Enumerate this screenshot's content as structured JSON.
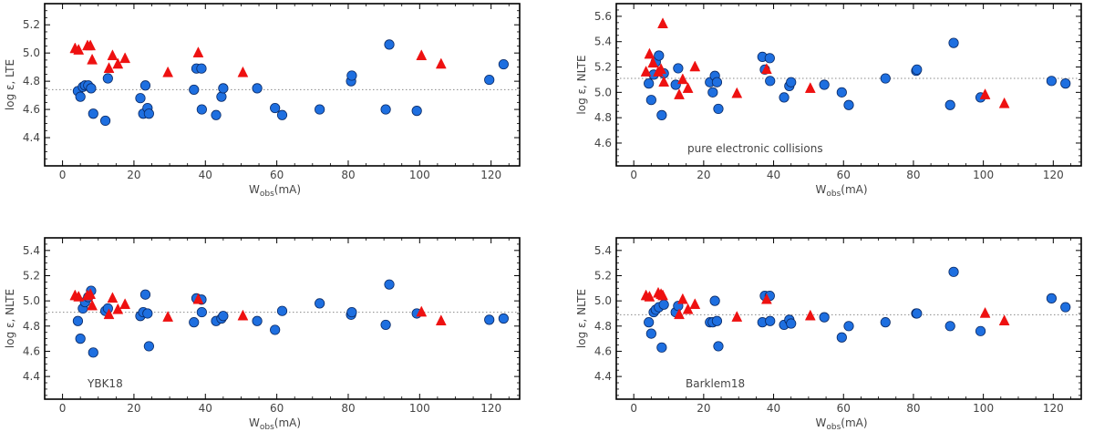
{
  "colors": {
    "circle": "#1e6fe0",
    "triangle": "#ee1111",
    "refline": "#8a8a8a",
    "frame": "#000000"
  },
  "chart_data": [
    {
      "type": "scatter",
      "ylabel": "log ε,  LTE",
      "xlabel": "W",
      "xlabel_sub": "obs",
      "xlabel_suffix": "(mA)",
      "annotation": "",
      "xlim": [
        -5,
        128
      ],
      "ylim": [
        4.2,
        5.35
      ],
      "xticks": [
        0,
        20,
        40,
        60,
        80,
        100,
        120
      ],
      "yticks": [
        4.4,
        4.6,
        4.8,
        5.0,
        5.2
      ],
      "refline": 4.74,
      "triangles": {
        "x": [
          3.5,
          4.5,
          7.0,
          7.8,
          8.3,
          13.0,
          14.0,
          15.5,
          17.5,
          29.5,
          38.0,
          50.5,
          100.5,
          106.0
        ],
        "y": [
          5.03,
          5.02,
          5.05,
          5.05,
          4.95,
          4.89,
          4.98,
          4.92,
          4.96,
          4.86,
          5.0,
          4.86,
          4.98,
          4.92
        ]
      },
      "circles": {
        "x": [
          4.3,
          5.0,
          5.7,
          6.3,
          7.2,
          8.0,
          8.6,
          12.0,
          12.7,
          21.8,
          22.6,
          23.2,
          23.8,
          24.2,
          36.8,
          37.5,
          38.9,
          39.0,
          43.0,
          44.5,
          45.0,
          54.5,
          59.5,
          61.5,
          72.0,
          80.8,
          81.0,
          90.5,
          91.5,
          99.2,
          119.5,
          123.5
        ],
        "y": [
          4.73,
          4.69,
          4.76,
          4.77,
          4.77,
          4.75,
          4.57,
          4.52,
          4.82,
          4.68,
          4.57,
          4.77,
          4.61,
          4.57,
          4.74,
          4.89,
          4.89,
          4.6,
          4.56,
          4.69,
          4.75,
          4.75,
          4.61,
          4.56,
          4.6,
          4.8,
          4.84,
          4.6,
          5.06,
          4.59,
          4.81,
          4.92
        ]
      }
    },
    {
      "type": "scatter",
      "ylabel": "log ε,  NLTE",
      "xlabel": "W",
      "xlabel_sub": "obs",
      "xlabel_suffix": "(mA)",
      "annotation": "pure electronic collisions",
      "xlim": [
        -5,
        128
      ],
      "ylim": [
        4.42,
        5.7
      ],
      "xticks": [
        0,
        20,
        40,
        60,
        80,
        100,
        120
      ],
      "yticks": [
        4.6,
        4.8,
        5.0,
        5.2,
        5.4,
        5.6
      ],
      "refline": 5.11,
      "triangles": {
        "x": [
          3.5,
          4.5,
          5.5,
          7.0,
          7.8,
          8.3,
          8.6,
          13.0,
          14.0,
          15.5,
          17.5,
          29.5,
          38.0,
          50.5,
          100.5,
          106.0
        ],
        "y": [
          5.16,
          5.3,
          5.23,
          5.16,
          5.18,
          5.54,
          5.08,
          4.98,
          5.1,
          5.03,
          5.2,
          4.99,
          5.18,
          5.03,
          4.98,
          4.91
        ]
      },
      "circles": {
        "x": [
          4.3,
          5.0,
          5.7,
          6.3,
          7.2,
          8.0,
          8.6,
          12.0,
          12.7,
          21.8,
          22.6,
          23.2,
          23.8,
          24.2,
          36.8,
          37.5,
          38.9,
          39.0,
          43.0,
          44.5,
          45.0,
          54.5,
          59.5,
          61.5,
          72.0,
          80.8,
          81.0,
          90.5,
          91.5,
          99.2,
          119.5,
          123.5
        ],
        "y": [
          5.07,
          4.94,
          5.14,
          5.24,
          5.29,
          4.82,
          5.15,
          5.06,
          5.19,
          5.08,
          5.0,
          5.13,
          5.08,
          4.87,
          5.28,
          5.18,
          5.27,
          5.09,
          4.96,
          5.05,
          5.08,
          5.06,
          5.0,
          4.9,
          5.11,
          5.17,
          5.18,
          4.9,
          5.39,
          4.96,
          5.09,
          5.07
        ]
      }
    },
    {
      "type": "scatter",
      "ylabel": "log ε,  NLTE",
      "xlabel": "W",
      "xlabel_sub": "obs",
      "xlabel_suffix": "(mA)",
      "annotation": "YBK18",
      "xlim": [
        -5,
        128
      ],
      "ylim": [
        4.22,
        5.5
      ],
      "xticks": [
        0,
        20,
        40,
        60,
        80,
        100,
        120
      ],
      "yticks": [
        4.4,
        4.6,
        4.8,
        5.0,
        5.2,
        5.4
      ],
      "refline": 4.91,
      "triangles": {
        "x": [
          3.5,
          4.5,
          7.0,
          7.8,
          8.3,
          13.0,
          14.0,
          15.5,
          17.5,
          29.5,
          38.0,
          50.5,
          100.5,
          106.0
        ],
        "y": [
          5.04,
          5.03,
          5.04,
          5.05,
          4.96,
          4.89,
          5.02,
          4.93,
          4.97,
          4.87,
          5.01,
          4.88,
          4.91,
          4.84
        ]
      },
      "circles": {
        "x": [
          4.3,
          5.0,
          5.7,
          6.3,
          7.2,
          8.0,
          8.6,
          12.0,
          12.7,
          21.8,
          22.6,
          23.2,
          23.8,
          24.2,
          36.8,
          37.5,
          38.9,
          39.0,
          43.0,
          44.5,
          45.0,
          54.5,
          59.5,
          61.5,
          72.0,
          80.8,
          81.0,
          90.5,
          91.5,
          99.2,
          119.5,
          123.5
        ],
        "y": [
          4.84,
          4.7,
          4.94,
          4.99,
          5.03,
          5.08,
          4.59,
          4.92,
          4.94,
          4.88,
          4.91,
          5.05,
          4.9,
          4.64,
          4.83,
          5.02,
          5.01,
          4.91,
          4.84,
          4.86,
          4.88,
          4.84,
          4.77,
          4.92,
          4.98,
          4.89,
          4.91,
          4.81,
          5.13,
          4.9,
          4.85,
          4.86
        ]
      }
    },
    {
      "type": "scatter",
      "ylabel": "log ε,  NLTE",
      "xlabel": "W",
      "xlabel_sub": "obs",
      "xlabel_suffix": "(mA)",
      "annotation": "Barklem18",
      "xlim": [
        -5,
        128
      ],
      "ylim": [
        4.22,
        5.5
      ],
      "xticks": [
        0,
        20,
        40,
        60,
        80,
        100,
        120
      ],
      "yticks": [
        4.4,
        4.6,
        4.8,
        5.0,
        5.2,
        5.4
      ],
      "refline": 4.89,
      "triangles": {
        "x": [
          3.5,
          4.5,
          7.0,
          7.8,
          8.3,
          13.0,
          14.0,
          15.5,
          17.5,
          29.5,
          38.0,
          50.5,
          100.5,
          106.0
        ],
        "y": [
          5.04,
          5.03,
          5.06,
          5.05,
          5.04,
          4.89,
          5.01,
          4.93,
          4.97,
          4.87,
          5.01,
          4.88,
          4.9,
          4.84
        ]
      },
      "circles": {
        "x": [
          4.3,
          5.0,
          5.7,
          6.3,
          7.2,
          8.0,
          8.6,
          12.0,
          12.7,
          21.8,
          22.6,
          23.2,
          23.8,
          24.2,
          36.8,
          37.5,
          38.9,
          39.0,
          43.0,
          44.5,
          45.0,
          54.5,
          59.5,
          61.5,
          72.0,
          80.8,
          81.0,
          90.5,
          91.5,
          99.2,
          119.5,
          123.5
        ],
        "y": [
          4.83,
          4.74,
          4.91,
          4.93,
          4.95,
          4.63,
          4.97,
          4.91,
          4.96,
          4.83,
          4.83,
          5.0,
          4.84,
          4.64,
          4.83,
          5.04,
          5.04,
          4.84,
          4.81,
          4.85,
          4.82,
          4.87,
          4.71,
          4.8,
          4.83,
          4.9,
          4.9,
          4.8,
          5.23,
          4.76,
          5.02,
          4.95
        ]
      }
    }
  ]
}
